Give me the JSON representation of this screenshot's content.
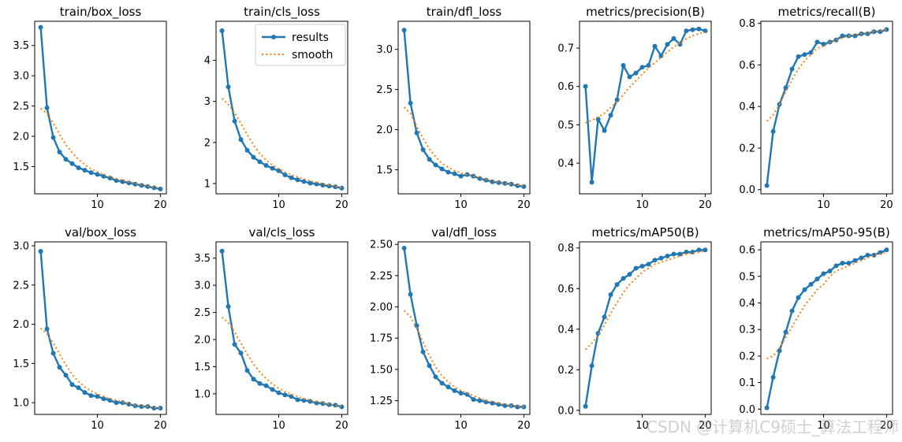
{
  "legend": {
    "results_label": "results",
    "smooth_label": "smooth"
  },
  "colors": {
    "results": "#1f77b4",
    "smooth": "#ff7f0e",
    "axis": "#000000"
  },
  "watermark": "CSDN @计算机C9硕士_算法工程师",
  "chart_data": [
    {
      "type": "line",
      "title": "train/box_loss",
      "xlabel": "",
      "ylabel": "",
      "x": [
        1,
        2,
        3,
        4,
        5,
        6,
        7,
        8,
        9,
        10,
        11,
        12,
        13,
        14,
        15,
        16,
        17,
        18,
        19,
        20
      ],
      "xlim": [
        0.05,
        20.95
      ],
      "ylim": [
        1.05,
        3.9
      ],
      "xticks": [
        10,
        20
      ],
      "yticks": [
        1.5,
        2.0,
        2.5,
        3.0,
        3.5
      ],
      "ytick_labels": [
        "1.5",
        "2.0",
        "2.5",
        "3.0",
        "3.5"
      ],
      "series": [
        {
          "name": "results",
          "values": [
            3.8,
            2.47,
            1.98,
            1.74,
            1.62,
            1.55,
            1.48,
            1.44,
            1.4,
            1.37,
            1.34,
            1.31,
            1.27,
            1.25,
            1.23,
            1.21,
            1.19,
            1.17,
            1.15,
            1.13
          ]
        },
        {
          "name": "smooth",
          "values": [
            2.46,
            2.38,
            2.22,
            2.03,
            1.86,
            1.73,
            1.62,
            1.53,
            1.46,
            1.41,
            1.37,
            1.33,
            1.3,
            1.27,
            1.25,
            1.22,
            1.2,
            1.18,
            1.16,
            1.14
          ]
        }
      ]
    },
    {
      "type": "line",
      "title": "train/cls_loss",
      "xlabel": "",
      "ylabel": "",
      "legend_position": "top-right",
      "x": [
        1,
        2,
        3,
        4,
        5,
        6,
        7,
        8,
        9,
        10,
        11,
        12,
        13,
        14,
        15,
        16,
        17,
        18,
        19,
        20
      ],
      "xlim": [
        0.05,
        20.95
      ],
      "ylim": [
        0.75,
        4.95
      ],
      "xticks": [
        10,
        20
      ],
      "yticks": [
        1,
        2,
        3,
        4
      ],
      "ytick_labels": [
        "1",
        "2",
        "3",
        "4"
      ],
      "series": [
        {
          "name": "results",
          "values": [
            4.72,
            3.35,
            2.52,
            2.07,
            1.81,
            1.64,
            1.53,
            1.44,
            1.37,
            1.31,
            1.21,
            1.14,
            1.09,
            1.05,
            1.01,
            0.99,
            0.96,
            0.94,
            0.92,
            0.89
          ]
        },
        {
          "name": "smooth",
          "values": [
            3.07,
            2.93,
            2.72,
            2.46,
            2.19,
            1.94,
            1.73,
            1.57,
            1.45,
            1.36,
            1.28,
            1.21,
            1.16,
            1.11,
            1.06,
            1.03,
            0.99,
            0.96,
            0.93,
            0.9
          ]
        }
      ]
    },
    {
      "type": "line",
      "title": "train/dfl_loss",
      "xlabel": "",
      "ylabel": "",
      "x": [
        1,
        2,
        3,
        4,
        5,
        6,
        7,
        8,
        9,
        10,
        11,
        12,
        13,
        14,
        15,
        16,
        17,
        18,
        19,
        20
      ],
      "xlim": [
        0.05,
        20.95
      ],
      "ylim": [
        1.2,
        3.35
      ],
      "xticks": [
        10,
        20
      ],
      "yticks": [
        1.5,
        2.0,
        2.5,
        3.0
      ],
      "ytick_labels": [
        "1.5",
        "2.0",
        "2.5",
        "3.0"
      ],
      "series": [
        {
          "name": "results",
          "values": [
            3.24,
            2.33,
            1.96,
            1.75,
            1.63,
            1.56,
            1.51,
            1.47,
            1.45,
            1.42,
            1.44,
            1.42,
            1.39,
            1.37,
            1.35,
            1.34,
            1.33,
            1.32,
            1.3,
            1.29
          ]
        },
        {
          "name": "smooth",
          "values": [
            2.28,
            2.2,
            2.04,
            1.89,
            1.76,
            1.66,
            1.58,
            1.53,
            1.49,
            1.46,
            1.44,
            1.42,
            1.4,
            1.38,
            1.36,
            1.35,
            1.33,
            1.32,
            1.31,
            1.3
          ]
        }
      ]
    },
    {
      "type": "line",
      "title": "metrics/precision(B)",
      "xlabel": "",
      "ylabel": "",
      "x": [
        1,
        2,
        3,
        4,
        5,
        6,
        7,
        8,
        9,
        10,
        11,
        12,
        13,
        14,
        15,
        16,
        17,
        18,
        19,
        20
      ],
      "xlim": [
        0.05,
        20.95
      ],
      "ylim": [
        0.32,
        0.77
      ],
      "xticks": [
        10,
        20
      ],
      "yticks": [
        0.4,
        0.5,
        0.6,
        0.7
      ],
      "ytick_labels": [
        "0.4",
        "0.5",
        "0.6",
        "0.7"
      ],
      "series": [
        {
          "name": "results",
          "values": [
            0.6,
            0.35,
            0.515,
            0.485,
            0.525,
            0.565,
            0.655,
            0.625,
            0.635,
            0.65,
            0.655,
            0.705,
            0.68,
            0.71,
            0.725,
            0.71,
            0.745,
            0.748,
            0.75,
            0.745
          ]
        },
        {
          "name": "smooth",
          "values": [
            0.505,
            0.512,
            0.52,
            0.53,
            0.545,
            0.56,
            0.578,
            0.598,
            0.615,
            0.632,
            0.648,
            0.662,
            0.676,
            0.69,
            0.703,
            0.714,
            0.724,
            0.732,
            0.738,
            0.742
          ]
        }
      ]
    },
    {
      "type": "line",
      "title": "metrics/recall(B)",
      "xlabel": "",
      "ylabel": "",
      "x": [
        1,
        2,
        3,
        4,
        5,
        6,
        7,
        8,
        9,
        10,
        11,
        12,
        13,
        14,
        15,
        16,
        17,
        18,
        19,
        20
      ],
      "xlim": [
        0.05,
        20.95
      ],
      "ylim": [
        -0.02,
        0.81
      ],
      "xticks": [
        10,
        20
      ],
      "yticks": [
        0.0,
        0.2,
        0.4,
        0.6,
        0.8
      ],
      "ytick_labels": [
        "0.0",
        "0.2",
        "0.4",
        "0.6",
        "0.8"
      ],
      "series": [
        {
          "name": "results",
          "values": [
            0.02,
            0.28,
            0.41,
            0.49,
            0.58,
            0.64,
            0.65,
            0.66,
            0.71,
            0.7,
            0.71,
            0.72,
            0.74,
            0.74,
            0.74,
            0.75,
            0.75,
            0.76,
            0.76,
            0.77
          ]
        },
        {
          "name": "smooth",
          "values": [
            0.33,
            0.36,
            0.41,
            0.47,
            0.53,
            0.58,
            0.62,
            0.65,
            0.68,
            0.69,
            0.71,
            0.72,
            0.73,
            0.74,
            0.745,
            0.75,
            0.755,
            0.76,
            0.765,
            0.77
          ]
        }
      ]
    },
    {
      "type": "line",
      "title": "val/box_loss",
      "xlabel": "",
      "ylabel": "",
      "x": [
        1,
        2,
        3,
        4,
        5,
        6,
        7,
        8,
        9,
        10,
        11,
        12,
        13,
        14,
        15,
        16,
        17,
        18,
        19,
        20
      ],
      "xlim": [
        0.05,
        20.95
      ],
      "ylim": [
        0.85,
        3.05
      ],
      "xticks": [
        10,
        20
      ],
      "yticks": [
        1.0,
        1.5,
        2.0,
        2.5,
        3.0
      ],
      "ytick_labels": [
        "1.0",
        "1.5",
        "2.0",
        "2.5",
        "3.0"
      ],
      "series": [
        {
          "name": "results",
          "values": [
            2.93,
            1.94,
            1.63,
            1.45,
            1.35,
            1.23,
            1.19,
            1.13,
            1.09,
            1.08,
            1.05,
            1.03,
            1.0,
            1.0,
            0.98,
            0.96,
            0.95,
            0.95,
            0.93,
            0.93
          ]
        },
        {
          "name": "smooth",
          "values": [
            1.95,
            1.88,
            1.76,
            1.62,
            1.48,
            1.36,
            1.27,
            1.2,
            1.15,
            1.11,
            1.08,
            1.05,
            1.03,
            1.01,
            0.99,
            0.97,
            0.96,
            0.95,
            0.94,
            0.93
          ]
        }
      ]
    },
    {
      "type": "line",
      "title": "val/cls_loss",
      "xlabel": "",
      "ylabel": "",
      "x": [
        1,
        2,
        3,
        4,
        5,
        6,
        7,
        8,
        9,
        10,
        11,
        12,
        13,
        14,
        15,
        16,
        17,
        18,
        19,
        20
      ],
      "xlim": [
        0.05,
        20.95
      ],
      "ylim": [
        0.62,
        3.8
      ],
      "xticks": [
        10,
        20
      ],
      "yticks": [
        1.0,
        1.5,
        2.0,
        2.5,
        3.0,
        3.5
      ],
      "ytick_labels": [
        "1.0",
        "1.5",
        "2.0",
        "2.5",
        "3.0",
        "3.5"
      ],
      "series": [
        {
          "name": "results",
          "values": [
            3.63,
            2.61,
            1.91,
            1.75,
            1.43,
            1.27,
            1.19,
            1.15,
            1.08,
            1.02,
            0.98,
            0.95,
            0.89,
            0.88,
            0.86,
            0.83,
            0.82,
            0.8,
            0.79,
            0.76
          ]
        },
        {
          "name": "smooth",
          "values": [
            2.41,
            2.31,
            2.14,
            1.93,
            1.73,
            1.55,
            1.4,
            1.28,
            1.18,
            1.1,
            1.04,
            0.99,
            0.95,
            0.91,
            0.88,
            0.86,
            0.83,
            0.81,
            0.79,
            0.77
          ]
        }
      ]
    },
    {
      "type": "line",
      "title": "val/dfl_loss",
      "xlabel": "",
      "ylabel": "",
      "x": [
        1,
        2,
        3,
        4,
        5,
        6,
        7,
        8,
        9,
        10,
        11,
        12,
        13,
        14,
        15,
        16,
        17,
        18,
        19,
        20
      ],
      "xlim": [
        0.05,
        20.95
      ],
      "ylim": [
        1.14,
        2.52
      ],
      "xticks": [
        10,
        20
      ],
      "yticks": [
        1.25,
        1.5,
        1.75,
        2.0,
        2.25,
        2.5
      ],
      "ytick_labels": [
        "1.25",
        "1.50",
        "1.75",
        "2.00",
        "2.25",
        "2.50"
      ],
      "series": [
        {
          "name": "results",
          "values": [
            2.47,
            2.1,
            1.85,
            1.64,
            1.53,
            1.44,
            1.39,
            1.36,
            1.33,
            1.31,
            1.3,
            1.26,
            1.25,
            1.24,
            1.23,
            1.22,
            1.21,
            1.21,
            1.2,
            1.2
          ]
        },
        {
          "name": "smooth",
          "values": [
            1.97,
            1.92,
            1.83,
            1.72,
            1.61,
            1.52,
            1.45,
            1.4,
            1.36,
            1.33,
            1.31,
            1.29,
            1.27,
            1.25,
            1.24,
            1.23,
            1.22,
            1.21,
            1.21,
            1.2
          ]
        }
      ]
    },
    {
      "type": "line",
      "title": "metrics/mAP50(B)",
      "xlabel": "",
      "ylabel": "",
      "x": [
        1,
        2,
        3,
        4,
        5,
        6,
        7,
        8,
        9,
        10,
        11,
        12,
        13,
        14,
        15,
        16,
        17,
        18,
        19,
        20
      ],
      "xlim": [
        0.05,
        20.95
      ],
      "ylim": [
        -0.02,
        0.83
      ],
      "xticks": [
        10,
        20
      ],
      "yticks": [
        0.0,
        0.2,
        0.4,
        0.6,
        0.8
      ],
      "ytick_labels": [
        "0.0",
        "0.2",
        "0.4",
        "0.6",
        "0.8"
      ],
      "series": [
        {
          "name": "results",
          "values": [
            0.02,
            0.22,
            0.38,
            0.46,
            0.57,
            0.62,
            0.65,
            0.67,
            0.7,
            0.71,
            0.72,
            0.74,
            0.75,
            0.76,
            0.77,
            0.77,
            0.78,
            0.78,
            0.79,
            0.79
          ]
        },
        {
          "name": "smooth",
          "values": [
            0.3,
            0.33,
            0.37,
            0.42,
            0.48,
            0.53,
            0.58,
            0.62,
            0.65,
            0.68,
            0.7,
            0.72,
            0.73,
            0.74,
            0.75,
            0.76,
            0.77,
            0.775,
            0.78,
            0.785
          ]
        }
      ]
    },
    {
      "type": "line",
      "title": "metrics/mAP50-95(B)",
      "xlabel": "",
      "ylabel": "",
      "x": [
        1,
        2,
        3,
        4,
        5,
        6,
        7,
        8,
        9,
        10,
        11,
        12,
        13,
        14,
        15,
        16,
        17,
        18,
        19,
        20
      ],
      "xlim": [
        0.05,
        20.95
      ],
      "ylim": [
        -0.02,
        0.63
      ],
      "xticks": [
        10,
        20
      ],
      "yticks": [
        0.0,
        0.1,
        0.2,
        0.3,
        0.4,
        0.5,
        0.6
      ],
      "ytick_labels": [
        "0.0",
        "0.1",
        "0.2",
        "0.3",
        "0.4",
        "0.5",
        "0.6"
      ],
      "series": [
        {
          "name": "results",
          "values": [
            0.005,
            0.12,
            0.22,
            0.29,
            0.37,
            0.42,
            0.45,
            0.47,
            0.49,
            0.51,
            0.52,
            0.54,
            0.55,
            0.55,
            0.56,
            0.57,
            0.58,
            0.58,
            0.59,
            0.6
          ]
        },
        {
          "name": "smooth",
          "values": [
            0.19,
            0.2,
            0.23,
            0.27,
            0.31,
            0.35,
            0.39,
            0.42,
            0.45,
            0.47,
            0.5,
            0.52,
            0.53,
            0.54,
            0.55,
            0.56,
            0.57,
            0.58,
            0.585,
            0.59
          ]
        }
      ]
    }
  ]
}
